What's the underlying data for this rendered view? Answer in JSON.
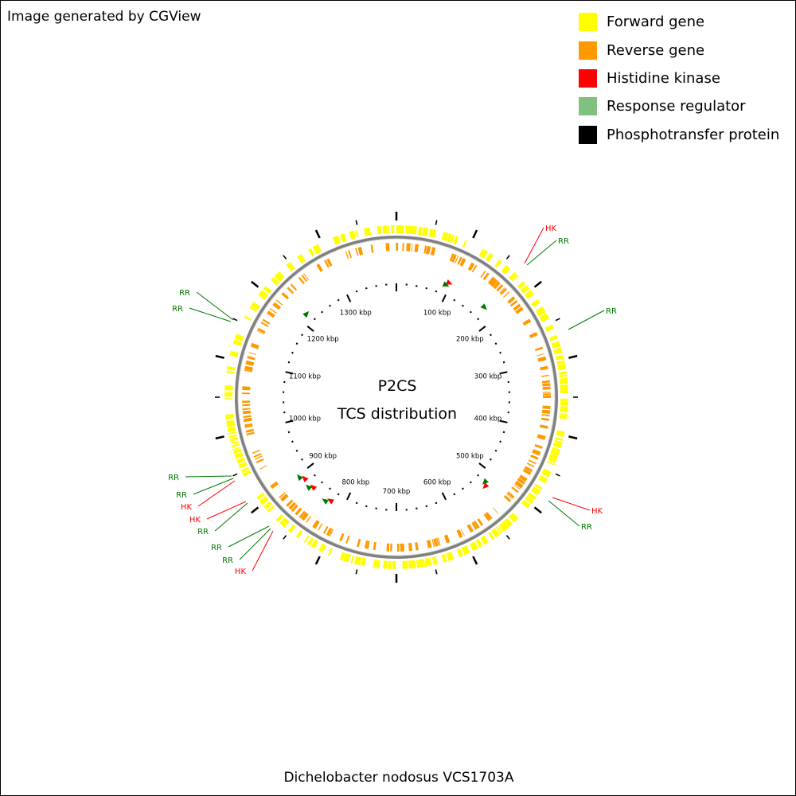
{
  "credit": "Image generated by CGView",
  "organism": "Dichelobacter nodosus VCS1703A",
  "center": {
    "line1": "P2CS",
    "line2": "TCS distribution"
  },
  "legend": [
    {
      "label": "Forward gene",
      "color": "#FFFF00",
      "icon": "square"
    },
    {
      "label": "Reverse gene",
      "color": "#FF9900",
      "icon": "square"
    },
    {
      "label": "Histidine kinase",
      "color": "#FF0000",
      "icon": "square"
    },
    {
      "label": "Response regulator",
      "color": "#80C080",
      "icon": "square"
    },
    {
      "label": "Phosphotransfer protein",
      "color": "#000000",
      "icon": "square"
    }
  ],
  "colors": {
    "forward": "#FFFF00",
    "reverse": "#FF9900",
    "hk": "#FF0000",
    "rr_marker": "#007700",
    "backbone": "#808080"
  },
  "genome": {
    "length_kbp": 1400,
    "tick_labels": [
      "100 kbp",
      "200 kbp",
      "300 kbp",
      "400 kbp",
      "500 kbp",
      "600 kbp",
      "700 kbp",
      "800 kbp",
      "900 kbp",
      "1000 kbp",
      "1100 kbp",
      "1200 kbp",
      "1300 kbp"
    ]
  },
  "features": [
    {
      "type": "RR",
      "label": "RR",
      "position_kbp": 92
    },
    {
      "type": "HK",
      "label": "HK",
      "position_kbp": 96
    },
    {
      "type": "RR",
      "label": "RR",
      "position_kbp": 172
    },
    {
      "type": "RR",
      "label": "RR",
      "position_kbp": 520
    },
    {
      "type": "HK",
      "label": "HK",
      "position_kbp": 525
    },
    {
      "type": "HK",
      "label": "HK",
      "position_kbp": 820
    },
    {
      "type": "RR",
      "label": "RR",
      "position_kbp": 826
    },
    {
      "type": "RR",
      "label": "RR",
      "position_kbp": 832
    },
    {
      "type": "RR",
      "label": "RR",
      "position_kbp": 866
    },
    {
      "type": "HK",
      "label": "HK",
      "position_kbp": 872
    },
    {
      "type": "HK",
      "label": "HK",
      "position_kbp": 888
    },
    {
      "type": "RR",
      "label": "RR",
      "position_kbp": 896
    },
    {
      "type": "RR",
      "label": "RR",
      "position_kbp": 900
    },
    {
      "type": "RR",
      "label": "RR",
      "position_kbp": 1216
    },
    {
      "type": "RR",
      "label": "RR",
      "position_kbp": 1220
    }
  ]
}
